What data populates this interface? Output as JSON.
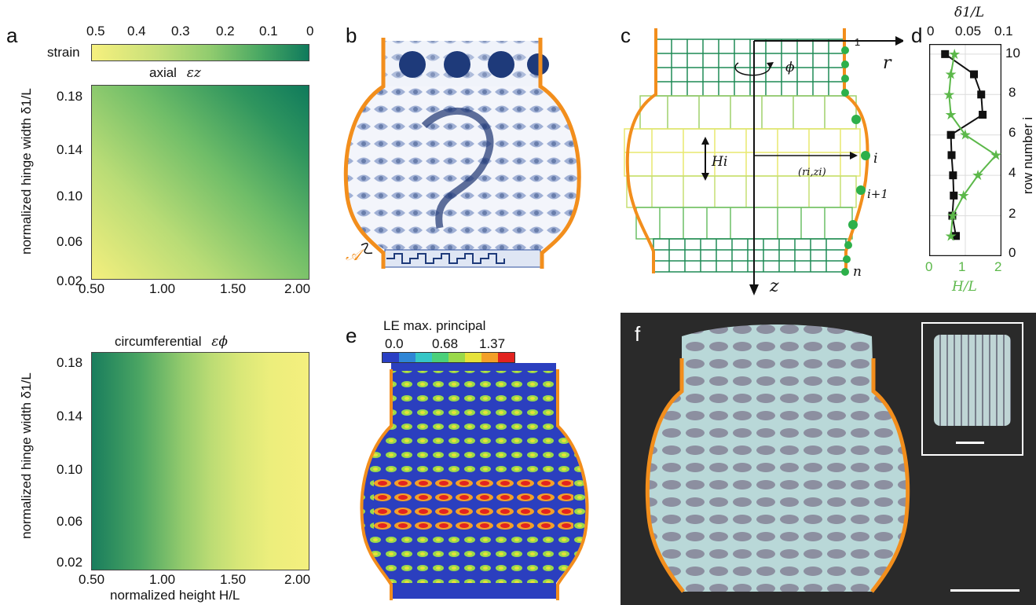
{
  "panels": {
    "a": "a",
    "b": "b",
    "c": "c",
    "d": "d",
    "e": "e",
    "f": "f"
  },
  "panel_a": {
    "colorbar_label": "strain",
    "colorbar_ticks": [
      "0.5",
      "0.4",
      "0.3",
      "0.2",
      "0.1",
      "0"
    ],
    "top_title": "axial",
    "top_title_symbol": "εz",
    "bottom_title": "circumferential",
    "bottom_title_symbol": "εϕ",
    "ylabel": "normalized hinge width δ1/L",
    "xlabel": "normalized height H/L",
    "colors": {
      "low": "#f4ef7e",
      "mid": "#7cc36b",
      "high": "#0f7a5c"
    }
  },
  "panel_b": {
    "annotation": "𝒜"
  },
  "panel_c": {
    "labels": {
      "r": "r",
      "z": "z",
      "phi": "ϕ",
      "H": "Hi",
      "coord": "(ri,zi)",
      "row1": "1",
      "rowi": "i",
      "rowi1": "i+1",
      "rown": "n"
    }
  },
  "panel_e": {
    "title": "LE max. principal",
    "ticks": [
      "0.0",
      "0.68",
      "1.37"
    ]
  },
  "chart_data": [
    {
      "type": "heatmap",
      "title": "axial εz",
      "xlabel": "normalized height H/L",
      "ylabel": "normalized hinge width δ1/L",
      "xticks": [
        "0.50",
        "1.00",
        "1.50",
        "2.00"
      ],
      "yticks": [
        "0.02",
        "0.06",
        "0.10",
        "0.14",
        "0.18"
      ],
      "xlim": [
        0.45,
        2.05
      ],
      "ylim": [
        0.015,
        0.19
      ],
      "colorbar_range": [
        0.5,
        0
      ],
      "trend": "strain highest at small H/L and small δ1/L, lowest at large H/L and large δ1/L"
    },
    {
      "type": "heatmap",
      "title": "circumferential εϕ",
      "xlabel": "normalized height H/L",
      "ylabel": "normalized hinge width δ1/L",
      "xticks": [
        "0.50",
        "1.00",
        "1.50",
        "2.00"
      ],
      "yticks": [
        "0.02",
        "0.06",
        "0.10",
        "0.14",
        "0.18"
      ],
      "xlim": [
        0.45,
        2.05
      ],
      "ylim": [
        0.015,
        0.19
      ],
      "colorbar_range": [
        0.5,
        0
      ],
      "trend": "strain increases with H/L, nearly independent of δ1/L"
    },
    {
      "type": "line",
      "title": "",
      "ylabel": "row number i",
      "x_top_label": "δ1/L",
      "x_bottom_label": "H/L",
      "x_top_ticks": [
        "0",
        "0.05",
        "0.1"
      ],
      "x_bottom_ticks": [
        "0",
        "1",
        "2"
      ],
      "y_ticks": [
        "0",
        "2",
        "4",
        "6",
        "8",
        "10"
      ],
      "ylim": [
        0,
        10.5
      ],
      "series": [
        {
          "name": "δ1/L",
          "color": "#111111",
          "marker": "square",
          "axis": "top",
          "xlim": [
            0,
            0.1
          ],
          "x": [
            0.037,
            0.032,
            0.034,
            0.033,
            0.031,
            0.03,
            0.074,
            0.072,
            0.062,
            0.022
          ],
          "y": [
            1,
            2,
            3,
            4,
            5,
            6,
            7,
            8,
            9,
            10
          ]
        },
        {
          "name": "H/L",
          "color": "#5cb84a",
          "marker": "star",
          "axis": "bottom",
          "xlim": [
            0,
            2
          ],
          "x": [
            0.6,
            0.65,
            0.95,
            1.35,
            1.85,
            1.0,
            0.6,
            0.55,
            0.6,
            0.7
          ],
          "y": [
            1,
            2,
            3,
            4,
            5,
            6,
            7,
            8,
            9,
            10
          ]
        }
      ]
    }
  ]
}
